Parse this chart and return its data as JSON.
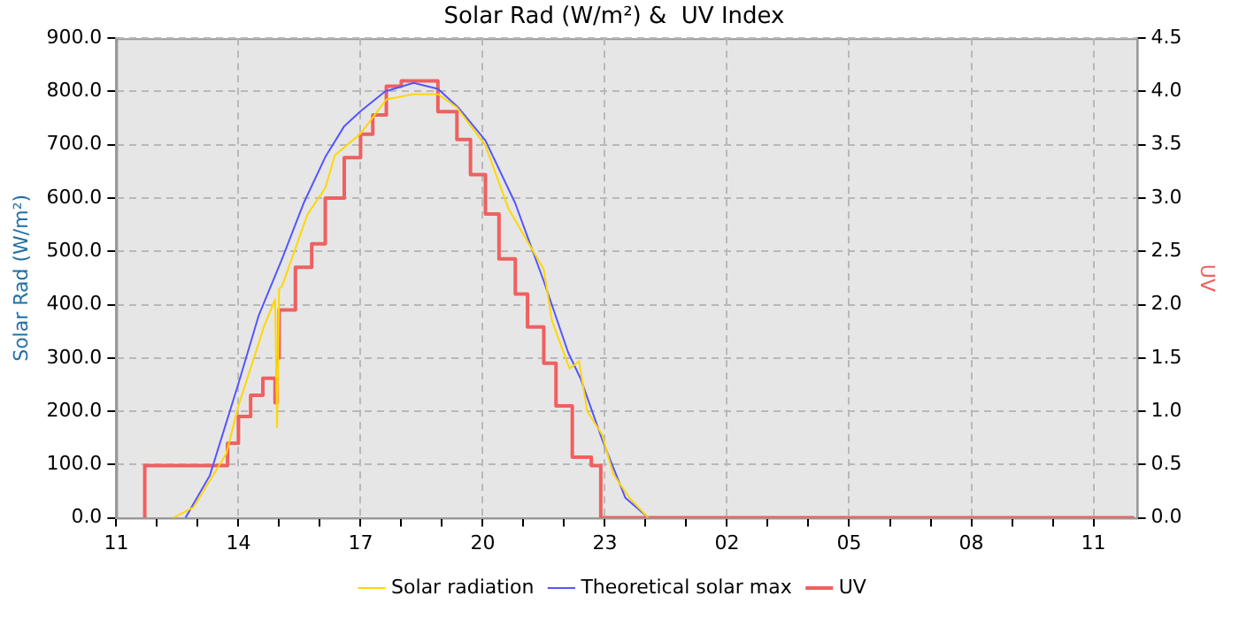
{
  "chart_data": {
    "type": "line",
    "title": "Solar Rad (W/m²) &  UV Index",
    "ylabel": "Solar Rad (W/m²)",
    "y2label": "UV",
    "xlim": [
      "--06-01T11:00",
      "--06-02T12:04"
    ],
    "xticks": [
      {
        "value": "--06-01T11:00",
        "label": "11"
      },
      {
        "value": "--06-01T12:00",
        "label": null
      },
      {
        "value": "--06-01T13:00",
        "label": null
      },
      {
        "value": "--06-01T14:00",
        "label": "14"
      },
      {
        "value": "--06-01T15:00",
        "label": null
      },
      {
        "value": "--06-01T16:00",
        "label": null
      },
      {
        "value": "--06-01T17:00",
        "label": "17"
      },
      {
        "value": "--06-01T18:00",
        "label": null
      },
      {
        "value": "--06-01T19:00",
        "label": null
      },
      {
        "value": "--06-01T20:00",
        "label": "20"
      },
      {
        "value": "--06-01T21:00",
        "label": null
      },
      {
        "value": "--06-01T22:00",
        "label": null
      },
      {
        "value": "--06-01T23:00",
        "label": "23"
      },
      {
        "value": "--06-02T00:00",
        "label": null
      },
      {
        "value": "--06-02T01:00",
        "label": null
      },
      {
        "value": "--06-02T02:00",
        "label": "02"
      },
      {
        "value": "--06-02T03:00",
        "label": null
      },
      {
        "value": "--06-02T04:00",
        "label": null
      },
      {
        "value": "--06-02T05:00",
        "label": "05"
      },
      {
        "value": "--06-02T06:00",
        "label": null
      },
      {
        "value": "--06-02T07:00",
        "label": null
      },
      {
        "value": "--06-02T08:00",
        "label": "08"
      },
      {
        "value": "--06-02T09:00",
        "label": null
      },
      {
        "value": "--06-02T10:00",
        "label": null
      },
      {
        "value": "--06-02T11:00",
        "label": "11"
      }
    ],
    "ylim": [
      0,
      900
    ],
    "yticks": [
      {
        "value": 0,
        "label": "0.0"
      },
      {
        "value": 100,
        "label": "100.0"
      },
      {
        "value": 200,
        "label": "200.0"
      },
      {
        "value": 300,
        "label": "300.0"
      },
      {
        "value": 400,
        "label": "400.0"
      },
      {
        "value": 500,
        "label": "500.0"
      },
      {
        "value": 600,
        "label": "600.0"
      },
      {
        "value": 700,
        "label": "700.0"
      },
      {
        "value": 800,
        "label": "800.0"
      },
      {
        "value": 900,
        "label": "900.0"
      }
    ],
    "y2lim": [
      0,
      4.5
    ],
    "y2ticks": [
      {
        "value": 0,
        "label": "0.0"
      },
      {
        "value": 0.5,
        "label": "0.5"
      },
      {
        "value": 1,
        "label": "1.0"
      },
      {
        "value": 1.5,
        "label": "1.5"
      },
      {
        "value": 2,
        "label": "2.0"
      },
      {
        "value": 2.5,
        "label": "2.5"
      },
      {
        "value": 3,
        "label": "3.0"
      },
      {
        "value": 3.5,
        "label": "3.5"
      },
      {
        "value": 4,
        "label": "4.0"
      },
      {
        "value": 4.5,
        "label": "4.5"
      }
    ],
    "grid": true,
    "legend": "bottom",
    "marker": "none",
    "series": [
      {
        "name": "Solar radiation",
        "color": "#ffd700",
        "x": [
          "--06-01T12:24",
          "--06-01T12:54",
          "--06-01T13:42",
          "--06-01T14:00",
          "--06-01T14:38",
          "--06-01T14:54",
          "--06-01T14:57",
          "--06-01T15:00",
          "--06-01T15:04",
          "--06-01T15:42",
          "--06-01T16:08",
          "--06-01T16:22",
          "--06-01T17:00",
          "--06-01T17:38",
          "--06-01T18:18",
          "--06-01T18:54",
          "--06-01T19:22",
          "--06-01T20:04",
          "--06-01T20:38",
          "--06-01T21:30",
          "--06-01T21:42",
          "--06-01T22:08",
          "--06-01T22:22",
          "--06-01T22:34",
          "--06-01T22:56",
          "--06-01T23:12",
          "--06-01T23:36",
          "--06-02T00:04"
        ],
        "values": [
          0,
          20,
          120,
          210,
          360,
          410,
          170,
          430,
          434,
          570,
          619,
          680,
          721,
          785,
          795,
          795,
          770,
          699,
          580,
          466,
          370,
          280,
          294,
          200,
          156,
          83,
          38,
          0
        ]
      },
      {
        "name": "Theoretical solar max",
        "color": "#5555ff",
        "x": [
          "--06-01T12:42",
          "--06-01T13:18",
          "--06-01T14:00",
          "--06-01T14:30",
          "--06-01T15:04",
          "--06-01T15:36",
          "--06-01T16:08",
          "--06-01T16:36",
          "--06-01T17:00",
          "--06-01T17:36",
          "--06-01T18:18",
          "--06-01T18:54",
          "--06-01T19:24",
          "--06-01T20:04",
          "--06-01T20:48",
          "--06-01T21:30",
          "--06-01T22:06",
          "--06-01T22:24",
          "--06-01T22:56",
          "--06-01T23:30",
          "--06-02T00:04"
        ],
        "values": [
          0,
          80,
          252,
          380,
          485,
          590,
          677,
          735,
          763,
          800,
          816,
          805,
          770,
          708,
          590,
          444,
          310,
          262,
          147,
          38,
          0
        ]
      },
      {
        "name": "UV",
        "type": "step",
        "axis": "y2",
        "color": "#f06060",
        "x": [
          "--06-01T11:42",
          "--06-01T13:44",
          "--06-01T14:00",
          "--06-01T14:18",
          "--06-01T14:36",
          "--06-01T14:54",
          "--06-01T14:57",
          "--06-01T15:00",
          "--06-01T15:24",
          "--06-01T15:48",
          "--06-01T16:08",
          "--06-01T16:36",
          "--06-01T17:00",
          "--06-01T17:18",
          "--06-01T17:38",
          "--06-01T18:00",
          "--06-01T18:18",
          "--06-01T18:54",
          "--06-01T19:22",
          "--06-01T19:42",
          "--06-01T20:04",
          "--06-01T20:24",
          "--06-01T20:48",
          "--06-01T21:06",
          "--06-01T21:30",
          "--06-01T21:48",
          "--06-01T22:12",
          "--06-01T22:40",
          "--06-01T22:54",
          "--06-01T22:57",
          "--06-02T12:00"
        ],
        "values": [
          0,
          0.49,
          0.7,
          0.95,
          1.15,
          1.31,
          1.08,
          1.5,
          1.95,
          2.35,
          2.57,
          3.0,
          3.38,
          3.6,
          3.78,
          4.05,
          4.1,
          4.1,
          3.81,
          3.55,
          3.22,
          2.85,
          2.43,
          2.1,
          1.79,
          1.45,
          1.05,
          0.57,
          0.49,
          0,
          0
        ]
      }
    ]
  }
}
